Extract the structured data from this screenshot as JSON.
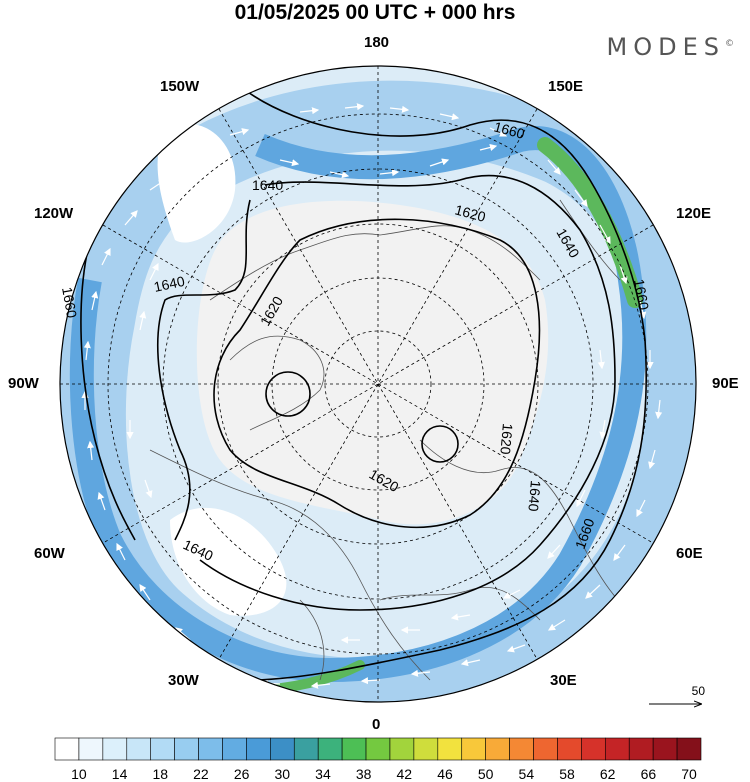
{
  "title": "01/05/2025  00 UTC  + 000 hrs",
  "brand": "MODES",
  "brand_mark": "©",
  "longitude_labels": {
    "n180": "180",
    "w150": "150W",
    "e150": "150E",
    "w120": "120W",
    "e120": "120E",
    "w90": "90W",
    "e90": "90E",
    "w60": "60W",
    "e60": "60E",
    "w30": "30W",
    "e30": "30E",
    "s0": "0"
  },
  "contour_labels": [
    "1660",
    "1640",
    "1620",
    "1640",
    "1660",
    "1620",
    "1620",
    "1620",
    "1640",
    "1640",
    "1660",
    "1660",
    "1640"
  ],
  "reference_vector": "50",
  "colorbar": {
    "tick_labels": [
      "10",
      "14",
      "18",
      "22",
      "26",
      "30",
      "34",
      "38",
      "42",
      "46",
      "50",
      "54",
      "58",
      "62",
      "66",
      "70"
    ],
    "colors": [
      "#ffffff",
      "#eef7fd",
      "#dcf0fb",
      "#c8e6f8",
      "#b2dbf5",
      "#98cdf0",
      "#7dbdea",
      "#62ace2",
      "#4a9bd8",
      "#3c8fc6",
      "#3aa0a0",
      "#3cb27c",
      "#4dbf55",
      "#74c940",
      "#a2d43c",
      "#cfdd3c",
      "#f2e23e",
      "#f8c83a",
      "#f8aa38",
      "#f48834",
      "#ee6630",
      "#e44a2c",
      "#d6322a",
      "#c42426",
      "#b01c22",
      "#9a141e",
      "#84101a"
    ]
  },
  "map_colors": {
    "weak": "#dcecf7",
    "moderate": "#a8d0ef",
    "strong": "#5fa6df",
    "jet": "#5cb85c",
    "land": "#f2f2f2",
    "coast": "#555555"
  }
}
